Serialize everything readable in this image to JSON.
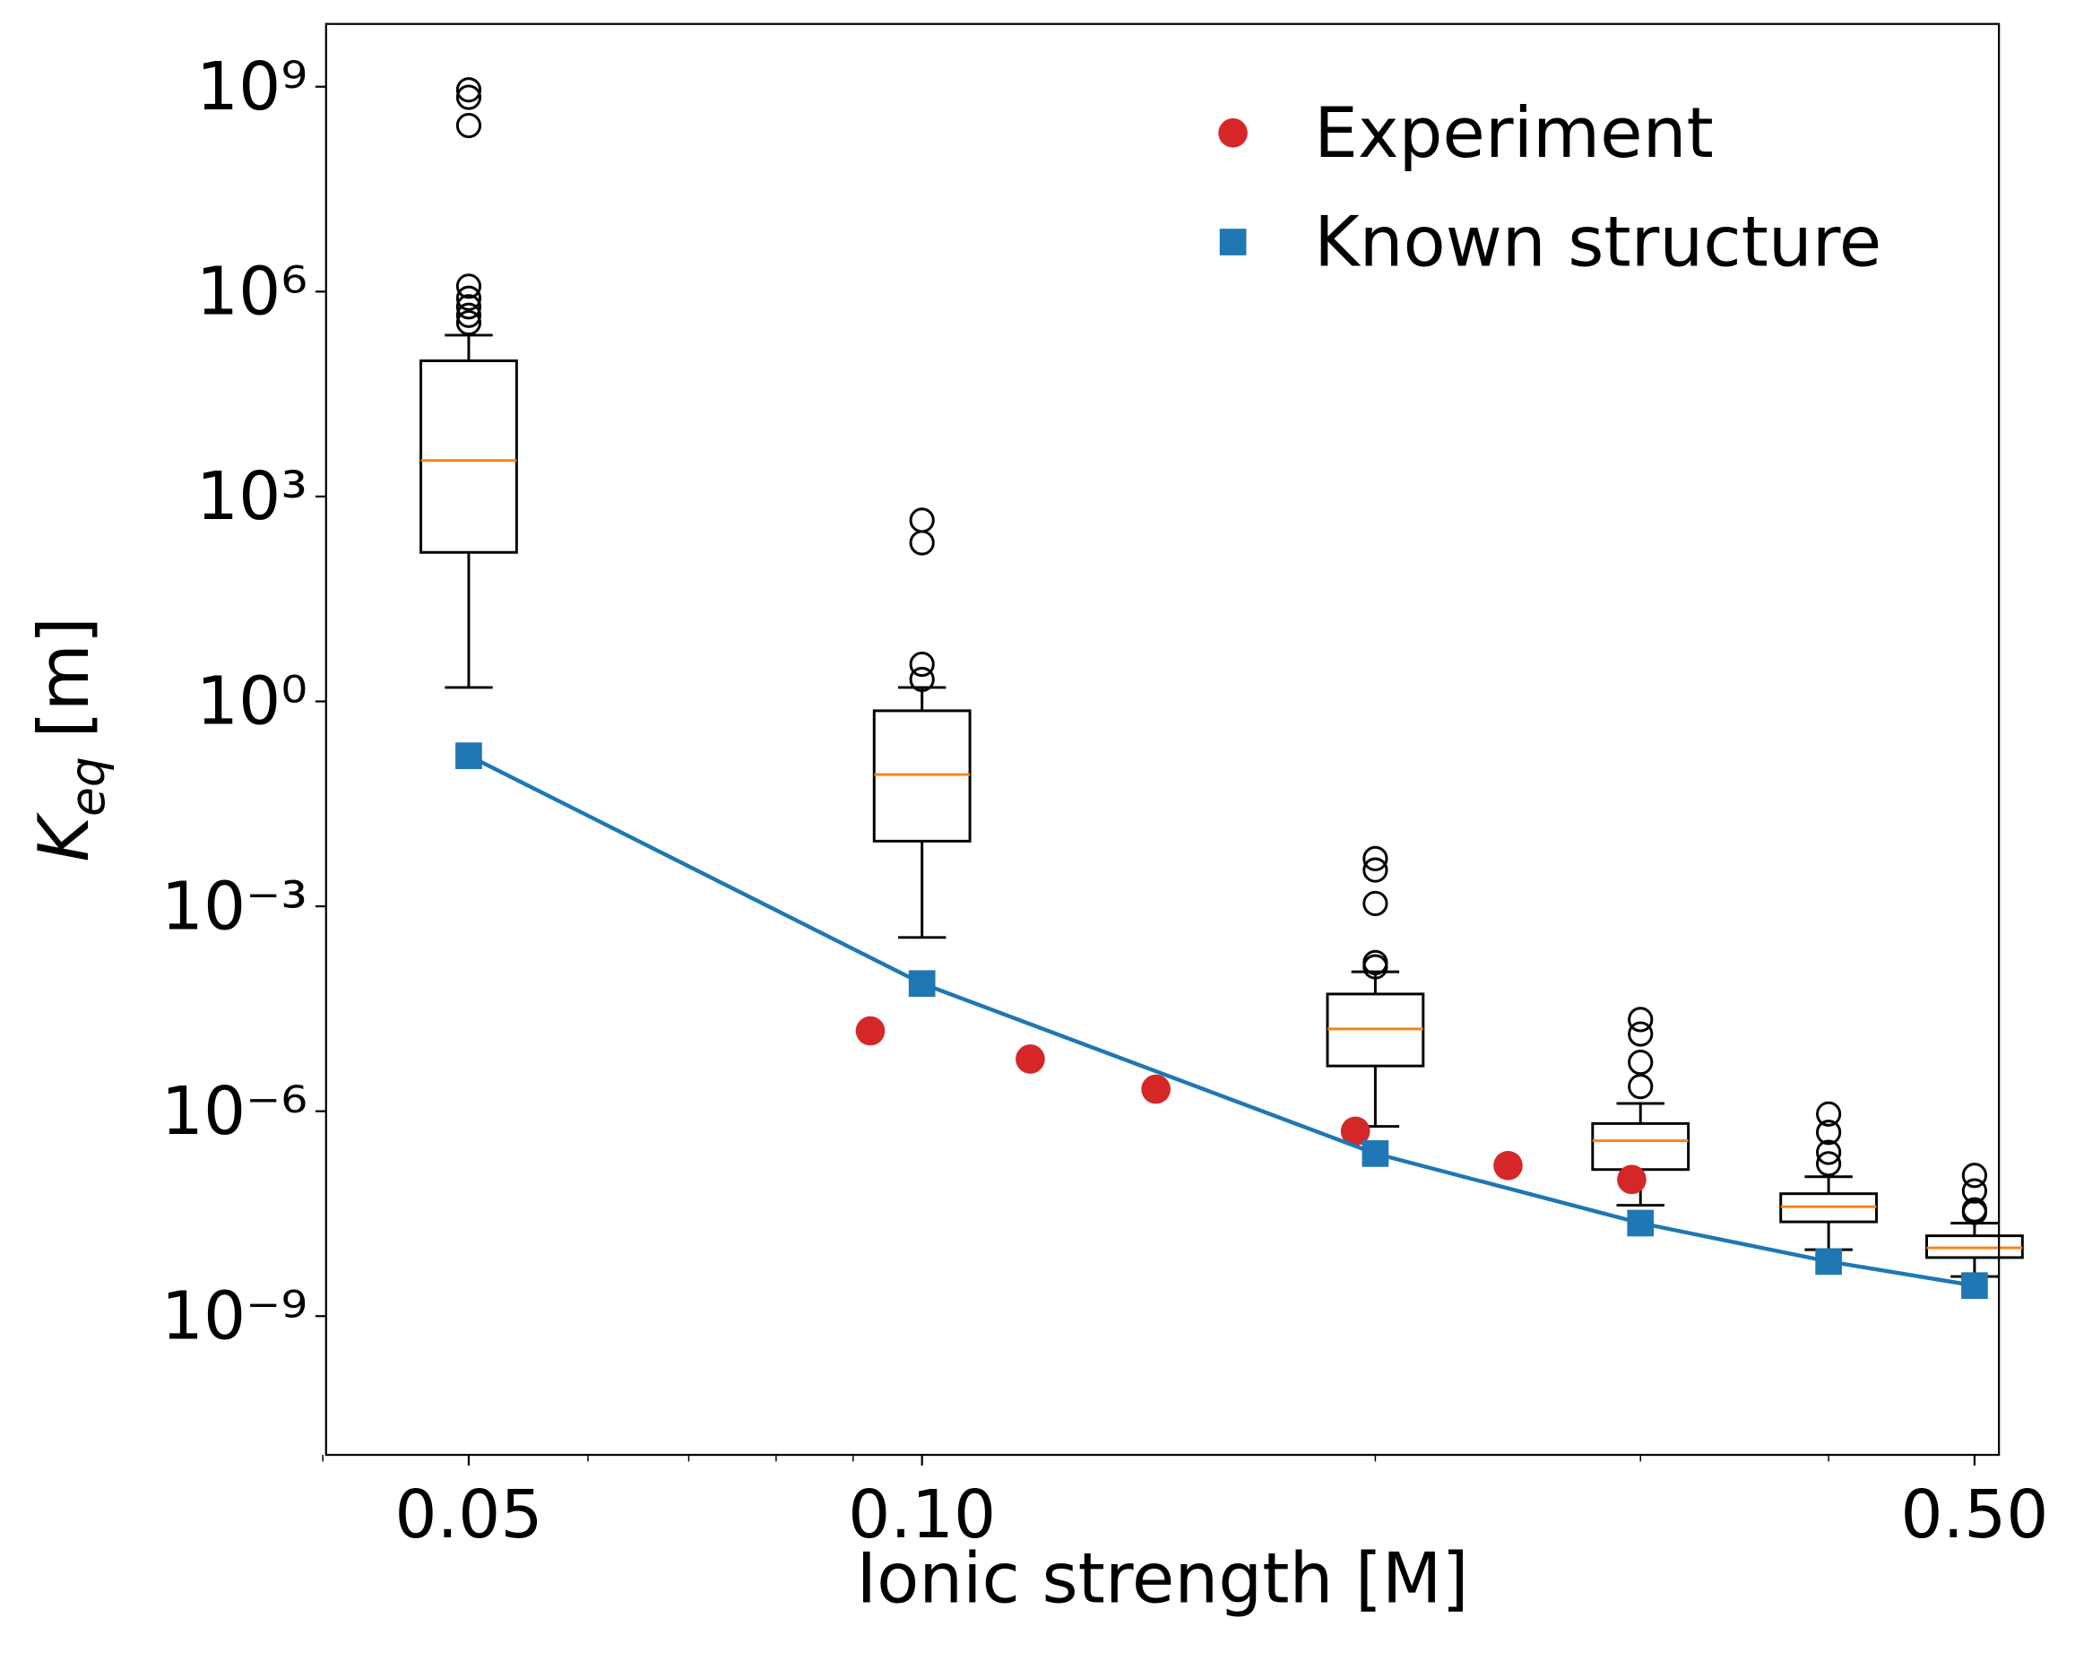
{
  "chart_data": {
    "type": "box",
    "xlabel": "Ionic strength [M]",
    "ylabel_symbol": "K",
    "ylabel_subscript": "eq",
    "ylabel_unit": "[m]",
    "xscale": "log",
    "yscale": "log",
    "xlim": [
      0.0402,
      0.519
    ],
    "ylim": [
      9.3e-12,
      8300000000.0
    ],
    "xticks": [
      0.05,
      {
        "value": 0.1,
        "label": "0.10"
      },
      {
        "value": 0.5,
        "label": "0.50"
      }
    ],
    "xminorticks": [
      0.04,
      0.06,
      0.07,
      0.08,
      0.09,
      0.2,
      0.3,
      0.4
    ],
    "yticks": [
      {
        "value": 1000000000.0,
        "label": "10⁹"
      },
      {
        "value": 1000000.0,
        "label": "10⁶"
      },
      {
        "value": 1000,
        "label": "10³"
      },
      {
        "value": 1,
        "label": "10⁰"
      },
      {
        "value": 0.001,
        "label": "10⁻³"
      },
      {
        "value": 1e-06,
        "label": "10⁻⁶"
      },
      {
        "value": 1e-09,
        "label": "10⁻⁹"
      }
    ],
    "box_color": "#000000",
    "median_color": "#ff7f0e",
    "boxes": [
      {
        "x": 0.05,
        "whislo": 1.6,
        "q1": 152,
        "med": 3370,
        "q3": 97000,
        "whishi": 230000,
        "fliers": [
          900000000,
          700000000,
          270000000,
          1200000,
          800000,
          600000,
          450000,
          350000
        ]
      },
      {
        "x": 0.1,
        "whislo": 0.00035,
        "q1": 0.009,
        "med": 0.085,
        "q3": 0.73,
        "whishi": 1.6,
        "fliers": [
          450,
          210,
          3.5,
          2.1
        ]
      },
      {
        "x": 0.2,
        "whislo": 6e-07,
        "q1": 4.6e-06,
        "med": 1.6e-05,
        "q3": 5.2e-05,
        "whishi": 0.00011,
        "fliers": [
          0.005,
          0.0034,
          0.0011,
          0.00015,
          0.00013
        ]
      },
      {
        "x": 0.3,
        "whislo": 4.2e-08,
        "q1": 1.4e-07,
        "med": 3.7e-07,
        "q3": 6.6e-07,
        "whishi": 1.3e-06,
        "fliers": [
          2.2e-05,
          1.35e-05,
          5.2e-06,
          2.3e-06
        ]
      },
      {
        "x": 0.4,
        "whislo": 9.4e-09,
        "q1": 2.4e-08,
        "med": 4e-08,
        "q3": 6.2e-08,
        "whishi": 1.1e-07,
        "fliers": [
          9.1e-07,
          4.9e-07,
          2.5e-07,
          1.7e-07
        ]
      },
      {
        "x": 0.5,
        "whislo": 3.8e-09,
        "q1": 7.2e-09,
        "med": 1e-08,
        "q3": 1.5e-08,
        "whishi": 2.3e-08,
        "fliers": [
          1.15e-07,
          6.8e-08,
          3.6e-08,
          3.3e-08
        ]
      }
    ],
    "series": [
      {
        "name": "Experiment",
        "marker": "circle",
        "line": false,
        "color": "#d62728",
        "x": [
          0.0924,
          0.118,
          0.143,
          0.194,
          0.245,
          0.296
        ],
        "values": [
          1.5e-05,
          5.8e-06,
          2.1e-06,
          5.1e-07,
          1.6e-07,
          1e-07
        ]
      },
      {
        "name": "Known structure",
        "marker": "square",
        "line": true,
        "color": "#1f77b4",
        "x": [
          0.05,
          0.1,
          0.2,
          0.3,
          0.4,
          0.5
        ],
        "values": [
          0.16,
          7.4e-05,
          2.4e-07,
          2.3e-08,
          6.3e-09,
          2.8e-09
        ]
      }
    ],
    "legend": "upper right"
  }
}
